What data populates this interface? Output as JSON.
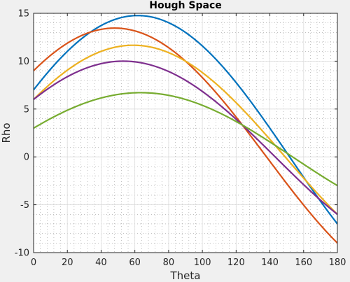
{
  "chart_data": {
    "type": "line",
    "title": "Hough Space",
    "xlabel": "Theta",
    "ylabel": "Rho",
    "xlim": [
      0,
      180
    ],
    "ylim": [
      -10,
      15
    ],
    "xticks": [
      0,
      20,
      40,
      60,
      80,
      100,
      120,
      140,
      160,
      180
    ],
    "yticks": [
      -10,
      -5,
      0,
      5,
      10,
      15
    ],
    "grid": true,
    "minor_grid": true,
    "background": "#ffffff",
    "figure_background": "#f0f0f0",
    "series": [
      {
        "x_pt": 7,
        "y_pt": 13,
        "color": "#0072bd",
        "x": [
          0,
          20,
          40,
          60,
          80,
          100,
          120,
          140,
          160,
          180
        ],
        "y": [
          7.0,
          11.02,
          13.32,
          14.76,
          12.36,
          9.59,
          3.14,
          -1.62,
          -5.09,
          -7.0
        ]
      },
      {
        "x_pt": 9,
        "y_pt": 10,
        "color": "#d95319",
        "x": [
          0,
          20,
          40,
          60,
          80,
          100,
          120,
          140,
          160,
          180
        ],
        "y": [
          9.0,
          11.89,
          13.32,
          13.16,
          10.97,
          6.99,
          3.31,
          -1.58,
          -6.17,
          -9.0
        ]
      },
      {
        "x_pt": 6,
        "y_pt": 10,
        "color": "#edb120",
        "x": [
          0,
          20,
          40,
          60,
          80,
          100,
          120,
          140,
          160,
          180
        ],
        "y": [
          6.0,
          9.06,
          11.02,
          11.55,
          10.49,
          8.14,
          3.06,
          -0.92,
          -3.97,
          -6.0
        ]
      },
      {
        "x_pt": 6,
        "y_pt": 8,
        "color": "#7e2f8e",
        "x": [
          0,
          20,
          40,
          60,
          80,
          100,
          120,
          140,
          160,
          180
        ],
        "y": [
          6.0,
          8.37,
          9.73,
          9.93,
          8.92,
          6.83,
          3.1,
          -0.46,
          -3.76,
          -6.0
        ]
      },
      {
        "x_pt": 3,
        "y_pt": 6,
        "color": "#77ac30",
        "x": [
          0,
          20,
          40,
          60,
          80,
          100,
          120,
          140,
          160,
          180
        ],
        "y": [
          3.0,
          4.87,
          6.15,
          6.7,
          6.43,
          5.41,
          3.2,
          1.11,
          -1.49,
          -3.0
        ]
      }
    ]
  }
}
